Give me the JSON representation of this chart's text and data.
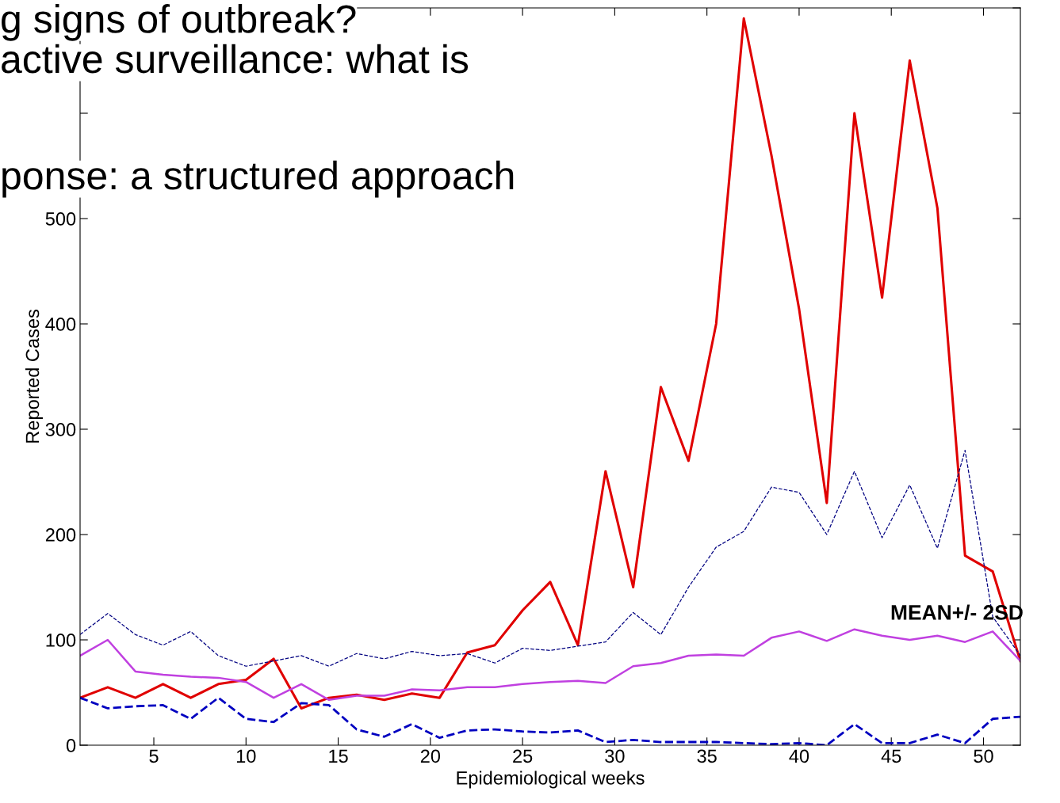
{
  "chart_data": {
    "type": "line",
    "xlabel": "Epidemiological weeks",
    "ylabel": "Reported Cases",
    "x": [
      1,
      2.5,
      4,
      5.5,
      7,
      8.5,
      10,
      11.5,
      13,
      14.5,
      16,
      17.5,
      19,
      20.5,
      22,
      23.5,
      25,
      26.5,
      28,
      29.5,
      31,
      32.5,
      34,
      35.5,
      37,
      38.5,
      40,
      41.5,
      43,
      44.5,
      46,
      47.5,
      49,
      50.5,
      52
    ],
    "series": [
      {
        "color": "#e00000",
        "line_style": "solid",
        "values": [
          45,
          55,
          45,
          58,
          45,
          58,
          62,
          82,
          35,
          45,
          48,
          43,
          49,
          45,
          88,
          95,
          128,
          155,
          95,
          260,
          150,
          340,
          270,
          400,
          690,
          560,
          414,
          230,
          600,
          425,
          650,
          510,
          180,
          165,
          80
        ]
      },
      {
        "color": "#000080",
        "line_style": "dashed",
        "values": [
          105,
          125,
          105,
          95,
          108,
          85,
          75,
          80,
          85,
          75,
          87,
          82,
          89,
          85,
          87,
          78,
          92,
          90,
          94,
          98,
          126,
          105,
          150,
          188,
          203,
          245,
          240,
          200,
          260,
          197,
          247,
          187,
          280,
          122,
          85
        ]
      },
      {
        "color": "#c040e0",
        "line_style": "solid",
        "values": [
          85,
          100,
          70,
          67,
          65,
          64,
          60,
          45,
          58,
          43,
          47,
          47,
          53,
          52,
          55,
          55,
          58,
          60,
          61,
          59,
          75,
          78,
          85,
          86,
          85,
          102,
          108,
          99,
          110,
          104,
          100,
          104,
          98,
          108,
          80
        ]
      },
      {
        "color": "#0000c0",
        "line_style": "dashed",
        "values": [
          45,
          35,
          37,
          38,
          25,
          45,
          25,
          22,
          40,
          38,
          15,
          8,
          20,
          7,
          14,
          15,
          13,
          12,
          14,
          3,
          5,
          3,
          3,
          3,
          2,
          1,
          2,
          0,
          20,
          2,
          2,
          10,
          2,
          25,
          27
        ]
      }
    ],
    "xlim": [
      1,
      52
    ],
    "xticks": [
      5,
      10,
      15,
      20,
      25,
      30,
      35,
      40,
      45,
      50
    ],
    "ylim": [
      0,
      700
    ],
    "yticks": [
      0,
      100,
      200,
      300,
      400,
      500,
      {
        "value": 600,
        "label": null
      },
      {
        "value": 700,
        "label": null
      }
    ],
    "grid": false,
    "legend": false,
    "annotations": [
      "g signs of outbreak?",
      "active surveillance: what is",
      "ponse: a structured approach",
      "MEAN+/- 2SD"
    ]
  }
}
